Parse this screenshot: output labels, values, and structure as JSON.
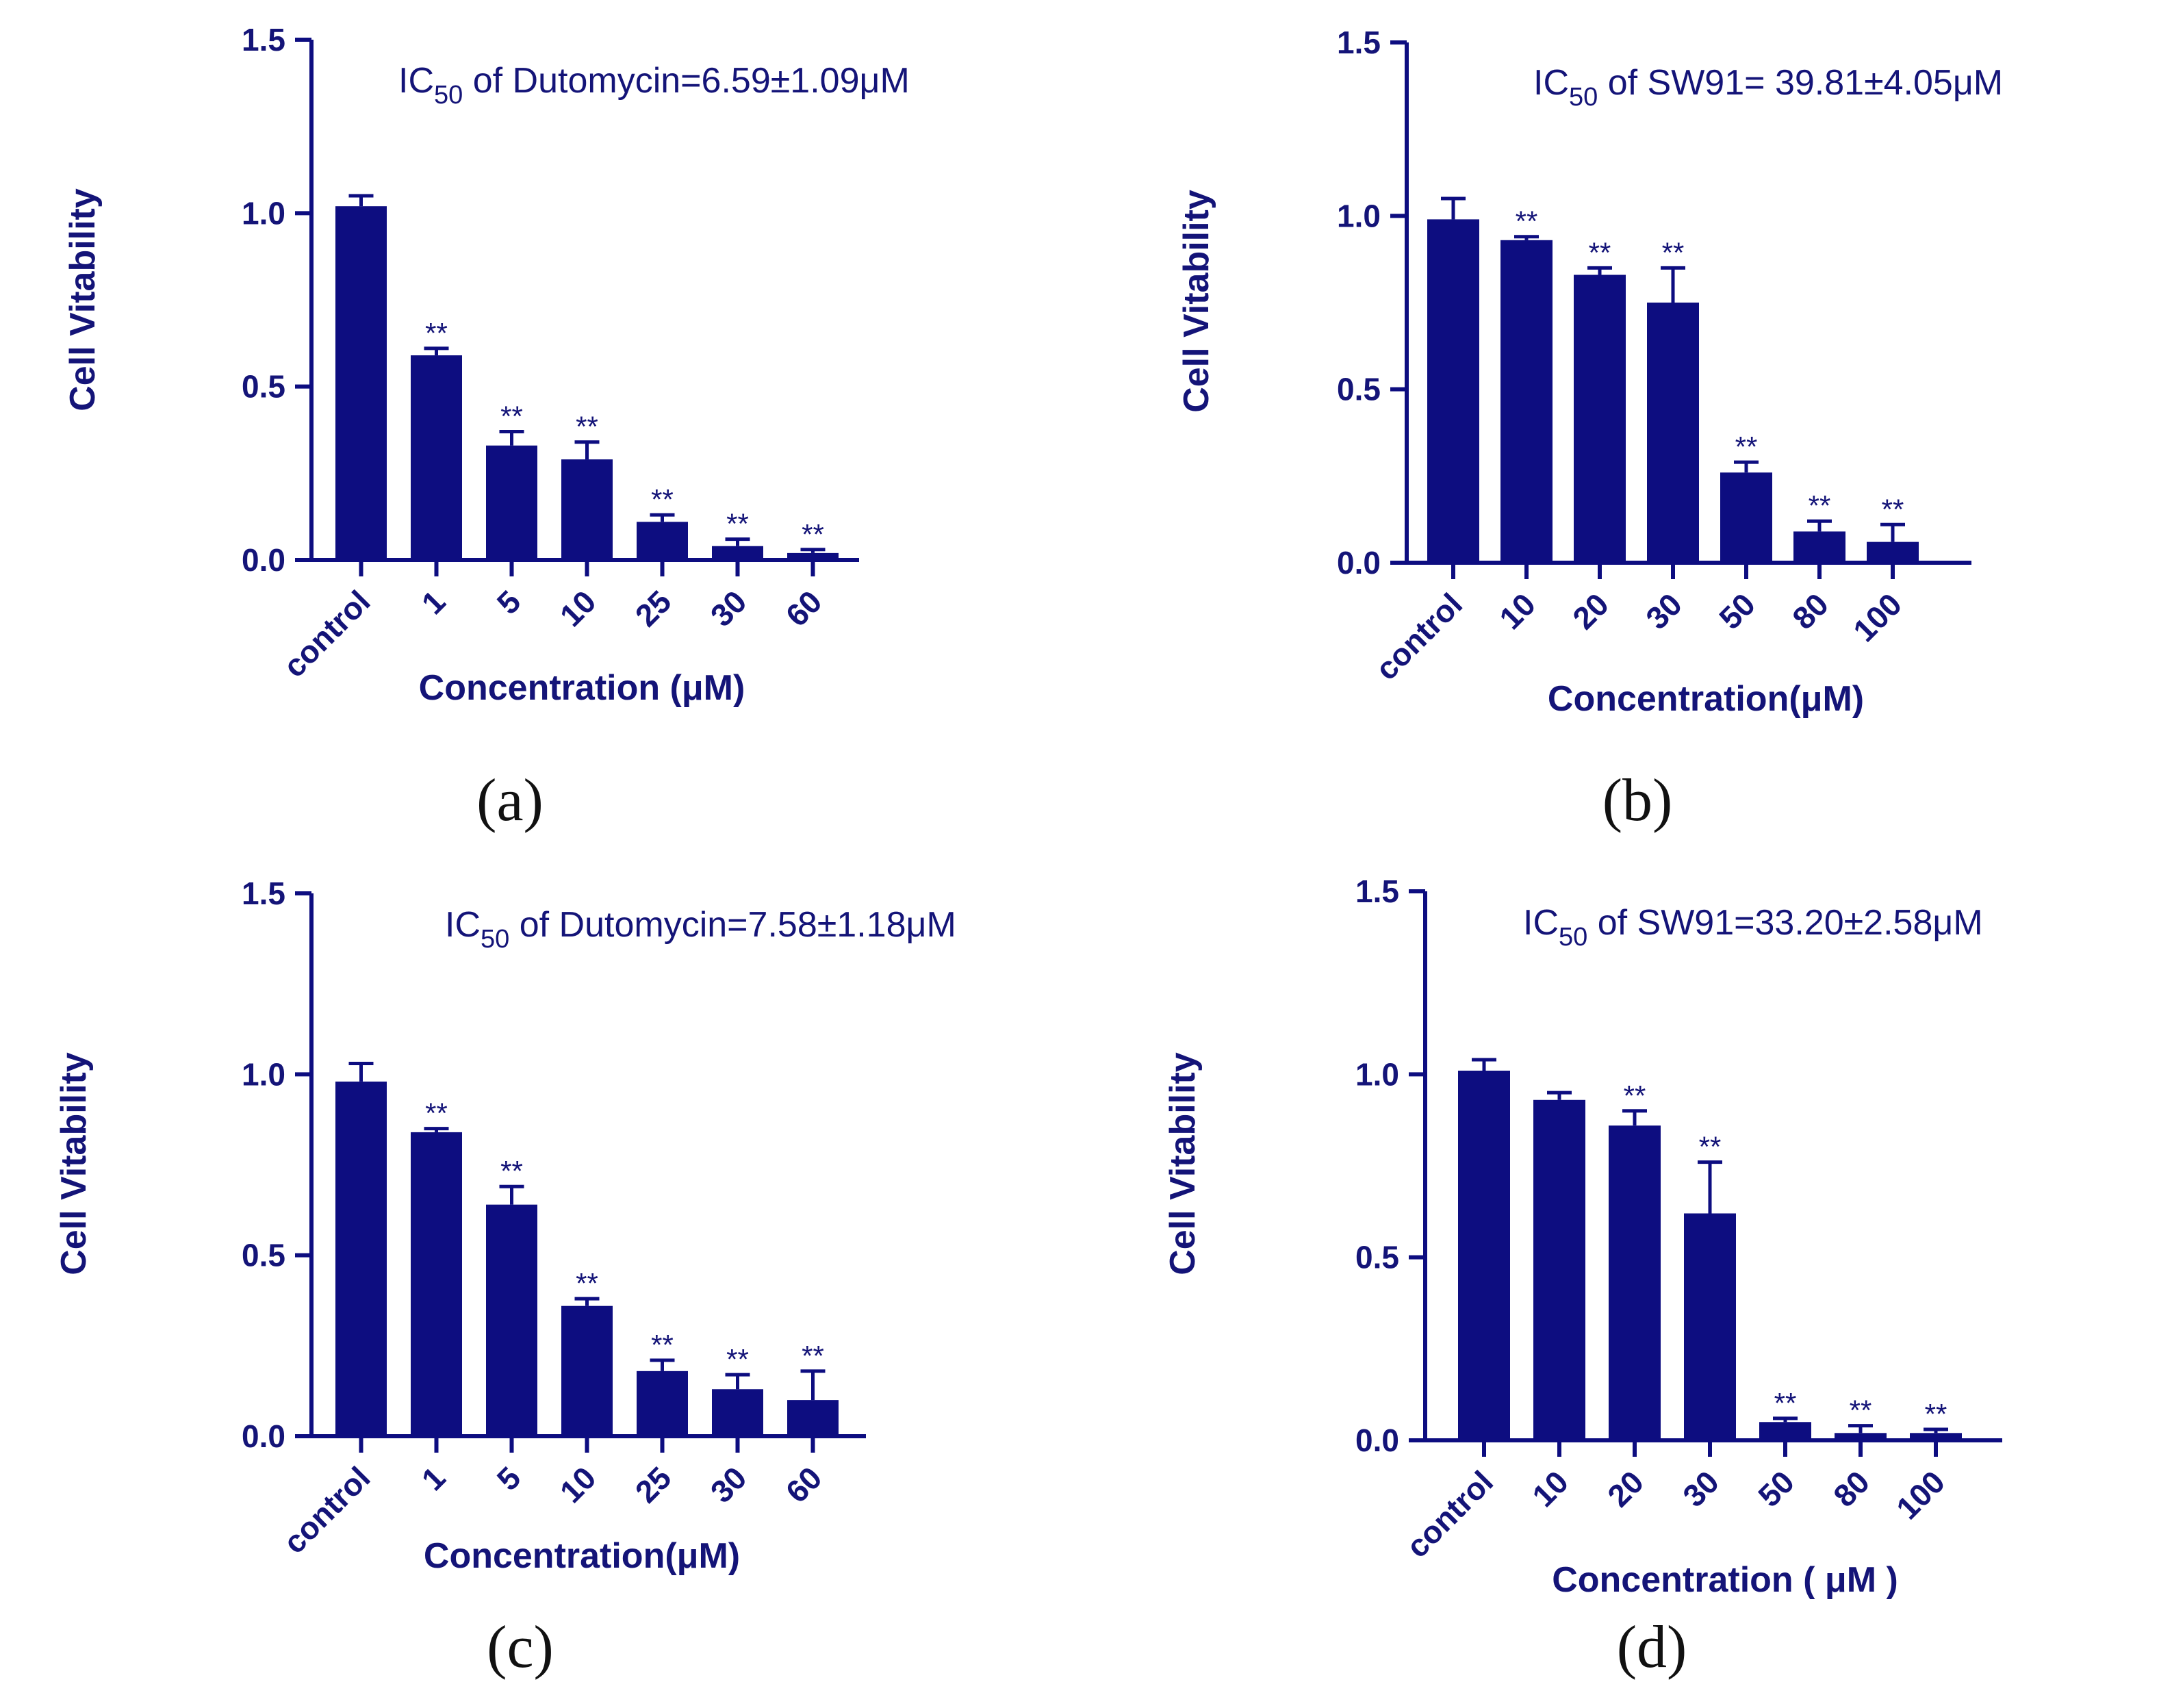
{
  "colors": {
    "bar": "#0d0d80",
    "text": "#141478"
  },
  "chart_data": [
    {
      "panel": "(a)",
      "type": "bar",
      "annotation": {
        "prefix": "IC",
        "subscript": "50",
        "suffix": " of Dutomycin=6.59±1.09μM"
      },
      "ylabel": "Cell Vitability",
      "xlabel": "Concentration (μM)",
      "ylim": [
        0,
        1.5
      ],
      "yticks": [
        "0.0",
        "0.5",
        "1.0",
        "1.5"
      ],
      "categories": [
        "control",
        "1",
        "5",
        "10",
        "25",
        "30",
        "60"
      ],
      "values": [
        1.02,
        0.59,
        0.33,
        0.29,
        0.11,
        0.04,
        0.02
      ],
      "errors": [
        0.03,
        0.02,
        0.04,
        0.05,
        0.02,
        0.02,
        0.01
      ],
      "significance": [
        "",
        "**",
        "**",
        "**",
        "**",
        "**",
        "**"
      ]
    },
    {
      "panel": "(b)",
      "type": "bar",
      "annotation": {
        "prefix": "IC",
        "subscript": "50",
        "suffix": " of SW91= 39.81±4.05μM"
      },
      "ylabel": "Cell Vitability",
      "xlabel": "Concentration(μM)",
      "ylim": [
        0,
        1.5
      ],
      "yticks": [
        "0.0",
        "0.5",
        "1.0",
        "1.5"
      ],
      "categories": [
        "control",
        "10",
        "20",
        "30",
        "50",
        "80",
        "100"
      ],
      "values": [
        0.99,
        0.93,
        0.83,
        0.75,
        0.26,
        0.09,
        0.06
      ],
      "errors": [
        0.06,
        0.01,
        0.02,
        0.1,
        0.03,
        0.03,
        0.05
      ],
      "significance": [
        "",
        "**",
        "**",
        "**",
        "**",
        "**",
        "**"
      ]
    },
    {
      "panel": "(c)",
      "type": "bar",
      "annotation": {
        "prefix": "IC",
        "subscript": "50",
        "suffix": " of Dutomycin=7.58±1.18μM"
      },
      "ylabel": "Cell Vitability",
      "xlabel": "Concentration(μM)",
      "ylim": [
        0,
        1.5
      ],
      "yticks": [
        "0.0",
        "0.5",
        "1.0",
        "1.5"
      ],
      "categories": [
        "control",
        "1",
        "5",
        "10",
        "25",
        "30",
        "60"
      ],
      "values": [
        0.98,
        0.84,
        0.64,
        0.36,
        0.18,
        0.13,
        0.1
      ],
      "errors": [
        0.05,
        0.01,
        0.05,
        0.02,
        0.03,
        0.04,
        0.08
      ],
      "significance": [
        "",
        "**",
        "**",
        "**",
        "**",
        "**",
        "**"
      ]
    },
    {
      "panel": "(d)",
      "type": "bar",
      "annotation": {
        "prefix": "IC",
        "subscript": "50",
        "suffix": " of SW91=33.20±2.58μM"
      },
      "ylabel": "Cell Vitability",
      "xlabel": "Concentration ( μM )",
      "ylim": [
        0,
        1.5
      ],
      "yticks": [
        "0.0",
        "0.5",
        "1.0",
        "1.5"
      ],
      "categories": [
        "control",
        "10",
        "20",
        "30",
        "50",
        "80",
        "100"
      ],
      "values": [
        1.01,
        0.93,
        0.86,
        0.62,
        0.05,
        0.02,
        0.02
      ],
      "errors": [
        0.03,
        0.02,
        0.04,
        0.14,
        0.01,
        0.02,
        0.01
      ],
      "significance": [
        "",
        "",
        "**",
        "**",
        "**",
        "**",
        "**"
      ]
    }
  ]
}
